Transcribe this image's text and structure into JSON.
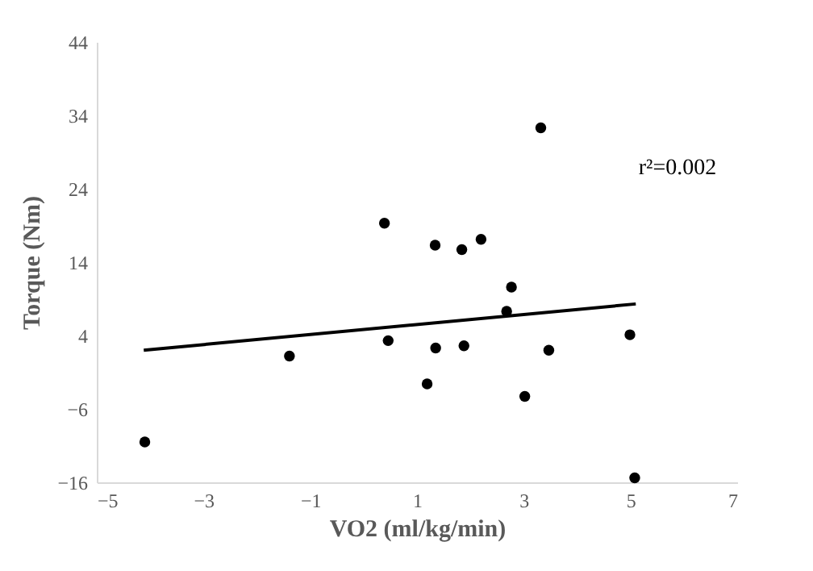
{
  "chart_data": {
    "type": "scatter",
    "xlabel": "VO2 (ml/kg/min)",
    "ylabel": "Torque (Nm)",
    "xlim": [
      -5,
      7
    ],
    "xticks": [
      -5,
      -3,
      -1,
      1,
      3,
      5,
      7
    ],
    "ylim": [
      -16,
      44
    ],
    "yticks": [
      -16,
      -6,
      4,
      14,
      24,
      34,
      44
    ],
    "grid": false,
    "annotations": [
      "r²=0.002"
    ],
    "series": [
      {
        "color": "#000000",
        "marker": "circle",
        "x": [
          -4.1,
          -1.39,
          0.39,
          0.46,
          1.34,
          1.35,
          1.19,
          1.84,
          1.88,
          2.2,
          2.77,
          2.68,
          3.32,
          3.02,
          3.47,
          4.99,
          5.08
        ],
        "values": [
          -10.5,
          1.2,
          19.3,
          3.3,
          16.3,
          2.3,
          -2.6,
          15.7,
          2.6,
          17.1,
          10.6,
          7.3,
          32.3,
          -4.3,
          2.0,
          4.1,
          -15.4
        ]
      },
      {
        "type": "line",
        "color": "#000000",
        "line_style": "solid",
        "x": [
          -4.12,
          5.1
        ],
        "values": [
          2.0,
          8.3
        ]
      }
    ]
  }
}
